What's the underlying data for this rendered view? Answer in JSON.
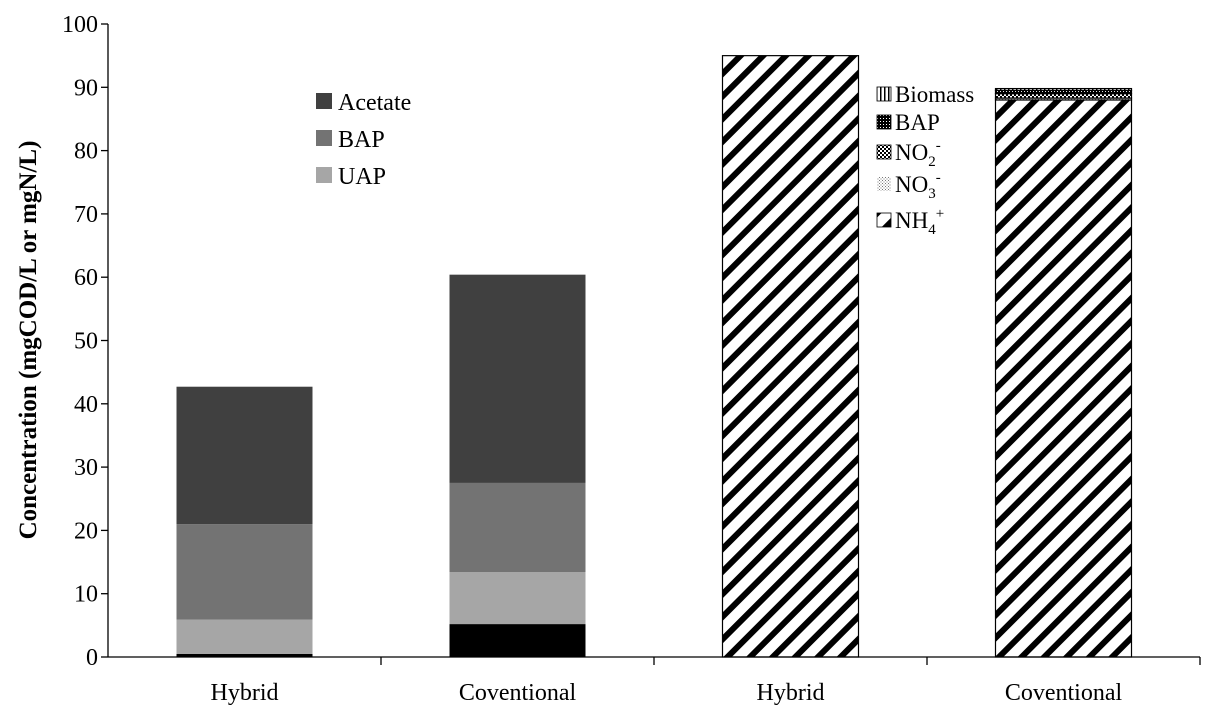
{
  "chart_data": {
    "type": "bar",
    "stacked": true,
    "title": "",
    "xlabel": "",
    "ylabel": "Concentration (mgCOD/L or mgN/L)",
    "ylim": [
      0,
      100
    ],
    "yticks": [
      0,
      10,
      20,
      30,
      40,
      50,
      60,
      70,
      80,
      90,
      100
    ],
    "categories": [
      "Hybrid",
      "Coventional",
      "Hybrid",
      "Coventional"
    ],
    "grid": false,
    "groups": [
      {
        "legend_placement": "upper-left",
        "categories": [
          "Hybrid",
          "Coventional"
        ],
        "series": [
          {
            "name": "",
            "color": "#000000",
            "values": [
              0.5,
              5.2
            ]
          },
          {
            "name": "UAP",
            "color": "#a6a6a6",
            "values": [
              5.4,
              8.2
            ]
          },
          {
            "name": "BAP",
            "color": "#737373",
            "values": [
              15.1,
              14.1
            ]
          },
          {
            "name": "Acetate",
            "color": "#404040",
            "values": [
              21.7,
              32.9
            ]
          }
        ]
      },
      {
        "legend_placement": "upper-right",
        "categories": [
          "Hybrid",
          "Coventional"
        ],
        "series": [
          {
            "name": "NH4+",
            "label_main": "NH",
            "label_sub": "4",
            "label_sup": "+",
            "pattern": "diagonal-stripes",
            "values": [
              95.0,
              88.0
            ]
          },
          {
            "name": "NO3-",
            "label_main": "NO",
            "label_sub": "3",
            "label_sup": "-",
            "pattern": "light-dots",
            "values": [
              0.0,
              0.3
            ]
          },
          {
            "name": "NO2-",
            "label_main": "NO",
            "label_sub": "2",
            "label_sup": "-",
            "pattern": "checker",
            "values": [
              0.0,
              0.7
            ]
          },
          {
            "name": "BAP",
            "label_main": "BAP",
            "pattern": "dense-dots",
            "values": [
              0.0,
              0.5
            ]
          },
          {
            "name": "Biomass",
            "label_main": "Biomass",
            "pattern": "vertical-stripes",
            "values": [
              0.0,
              0.3
            ]
          }
        ]
      }
    ]
  }
}
